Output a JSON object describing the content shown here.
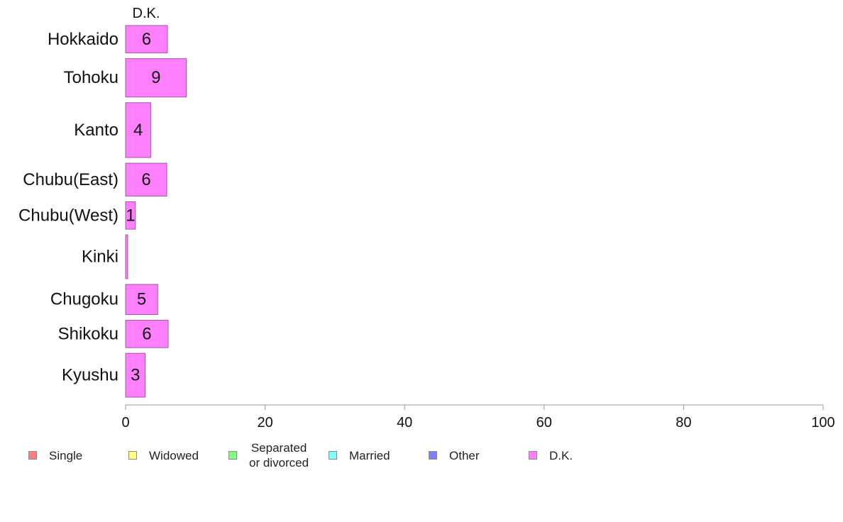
{
  "chart_data": {
    "type": "bar",
    "orientation": "horizontal",
    "stacked": true,
    "category_label_title": "D.K.",
    "categories": [
      "Hokkaido",
      "Tohoku",
      "Kanto",
      "Chubu(East)",
      "Chubu(West)",
      "Kinki",
      "Chugoku",
      "Shikoku",
      "Kyushu"
    ],
    "series": [
      {
        "name": "Single",
        "color": "#ff8080",
        "values": [
          0,
          0,
          0,
          0,
          0,
          0,
          0,
          0,
          0
        ]
      },
      {
        "name": "Widowed",
        "color": "#ffff80",
        "values": [
          0,
          0,
          0,
          0,
          0,
          0,
          0,
          0,
          0
        ]
      },
      {
        "name": "Separated\n or divorced",
        "color": "#80ff80",
        "values": [
          0,
          0,
          0,
          0,
          0,
          0,
          0,
          0,
          0
        ]
      },
      {
        "name": "Married",
        "color": "#80ffff",
        "values": [
          0,
          0,
          0,
          0,
          0,
          0,
          0,
          0,
          0
        ]
      },
      {
        "name": "Other",
        "color": "#8080ff",
        "values": [
          0,
          0,
          0,
          0,
          0,
          0,
          0,
          0,
          0
        ]
      },
      {
        "name": "D.K.",
        "color": "#ff80ff",
        "values": [
          6.0,
          8.7,
          3.6,
          5.9,
          1.4,
          0.3,
          4.6,
          6.1,
          2.8
        ]
      }
    ],
    "data_labels": [
      "6",
      "9",
      "4",
      "6",
      "1",
      "",
      "5",
      "6",
      "3"
    ],
    "xlim": [
      0,
      100
    ],
    "xticks": [
      0,
      20,
      40,
      60,
      80,
      100
    ],
    "bar_widths": [
      1.0,
      1.4,
      2.0,
      1.2,
      1.0,
      1.6,
      1.1,
      1.0,
      1.6
    ],
    "grid": false,
    "legend_position": "bottom"
  }
}
